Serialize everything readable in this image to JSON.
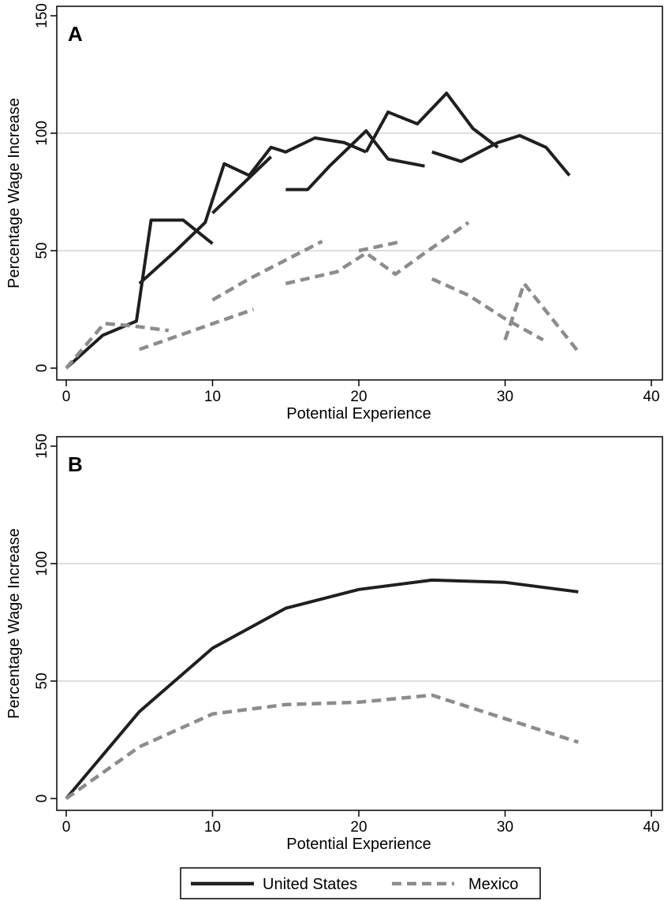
{
  "chart_data": [
    {
      "type": "line",
      "panel_label": "A",
      "xlabel": "Potential Experience",
      "ylabel": "Percentage Wage Increase",
      "xlim": [
        0,
        40
      ],
      "ylim": [
        0,
        150
      ],
      "xticks": [
        0,
        10,
        20,
        30,
        40
      ],
      "yticks": [
        0,
        50,
        100,
        150
      ],
      "grid": "horizontal",
      "series": [
        {
          "name": "United States",
          "segments": [
            [
              [
                0,
                0
              ],
              [
                2.5,
                14
              ],
              [
                4.8,
                20
              ],
              [
                5.8,
                63
              ],
              [
                8,
                63
              ],
              [
                10,
                53
              ]
            ],
            [
              [
                5,
                36
              ],
              [
                7.5,
                50
              ],
              [
                9.5,
                62
              ],
              [
                10.8,
                87
              ],
              [
                12.5,
                82
              ],
              [
                14,
                94
              ],
              [
                15,
                92
              ],
              [
                17,
                98
              ],
              [
                19,
                96
              ],
              [
                20.5,
                92
              ]
            ],
            [
              [
                10,
                66
              ],
              [
                11.5,
                75
              ],
              [
                14,
                90
              ]
            ],
            [
              [
                15,
                76
              ],
              [
                16.5,
                76
              ],
              [
                18,
                86
              ],
              [
                20.5,
                101
              ],
              [
                22,
                89
              ],
              [
                24.5,
                86
              ]
            ],
            [
              [
                20.5,
                92
              ],
              [
                22,
                109
              ],
              [
                24,
                104
              ],
              [
                26,
                117
              ],
              [
                27.8,
                102
              ],
              [
                29.5,
                94
              ]
            ],
            [
              [
                25,
                92
              ],
              [
                27,
                88
              ],
              [
                29.5,
                96
              ],
              [
                31,
                99
              ],
              [
                32.8,
                94
              ],
              [
                34.4,
                82
              ]
            ]
          ]
        },
        {
          "name": "Mexico",
          "segments": [
            [
              [
                0,
                0
              ],
              [
                2.6,
                19
              ],
              [
                4.5,
                18
              ],
              [
                7,
                16
              ]
            ],
            [
              [
                5,
                8
              ],
              [
                12.8,
                25
              ]
            ],
            [
              [
                10,
                29
              ],
              [
                12.5,
                38
              ],
              [
                17.5,
                54
              ]
            ],
            [
              [
                15,
                36
              ],
              [
                18.5,
                41
              ],
              [
                20.5,
                49
              ],
              [
                22.5,
                40
              ],
              [
                24.5,
                49
              ],
              [
                27.5,
                62
              ]
            ],
            [
              [
                20,
                50
              ],
              [
                23,
                54
              ]
            ],
            [
              [
                25,
                38
              ],
              [
                27.5,
                31
              ],
              [
                30,
                21
              ],
              [
                32.6,
                12
              ]
            ],
            [
              [
                30,
                12
              ],
              [
                31.3,
                36
              ],
              [
                35,
                7
              ]
            ]
          ]
        }
      ]
    },
    {
      "type": "line",
      "panel_label": "B",
      "xlabel": "Potential Experience",
      "ylabel": "Percentage Wage Increase",
      "xlim": [
        0,
        40
      ],
      "ylim": [
        0,
        150
      ],
      "xticks": [
        0,
        10,
        20,
        30,
        40
      ],
      "yticks": [
        0,
        50,
        100,
        150
      ],
      "grid": "horizontal",
      "series": [
        {
          "name": "United States",
          "x": [
            0,
            5,
            10,
            15,
            20,
            25,
            30,
            35
          ],
          "y": [
            0,
            37,
            64,
            81,
            89,
            93,
            92,
            88
          ]
        },
        {
          "name": "Mexico",
          "x": [
            0,
            5,
            10,
            15,
            20,
            25,
            30,
            35
          ],
          "y": [
            0,
            22,
            36,
            40,
            41,
            44,
            34,
            24
          ]
        }
      ]
    }
  ],
  "legend": {
    "position": "bottom-center",
    "items": [
      {
        "label": "United States",
        "color": "#1f1f1f",
        "dash": "solid"
      },
      {
        "label": "Mexico",
        "color": "#8c8c8c",
        "dash": "dashed"
      }
    ]
  },
  "colors": {
    "us": "#1f1f1f",
    "mexico": "#8c8c8c",
    "grid": "#d4d4d4",
    "axis": "#000000"
  }
}
